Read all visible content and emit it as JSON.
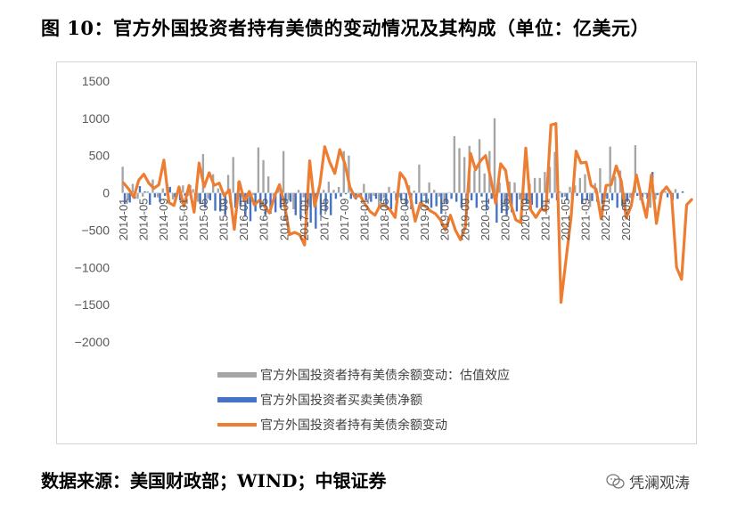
{
  "header": {
    "title": "图 10：官方外国投资者持有美债的变动情况及其构成（单位：亿美元）"
  },
  "footer": {
    "source": "数据来源：美国财政部；WIND；中银证券",
    "watermark": "凭澜观涛"
  },
  "colors": {
    "valuation": "#a5a5a5",
    "net_trade": "#4472c4",
    "total_change": "#ed7d31",
    "axis_text": "#595959"
  },
  "chart_data": {
    "type": "bar",
    "ylim": [
      -2000,
      1500
    ],
    "yticks": [
      1500,
      1000,
      500,
      0,
      -500,
      -1000,
      -1500,
      -2000
    ],
    "xticks": [
      "2014-01",
      "2014-05",
      "2014-09",
      "2015-01",
      "2015-05",
      "2015-09",
      "2016-01",
      "2016-05",
      "2016-09",
      "2017-01",
      "2017-05",
      "2017-09",
      "2018-01",
      "2018-05",
      "2018-09",
      "2019-01",
      "2019-05",
      "2019-09",
      "2020-01",
      "2020-05",
      "2020-09",
      "2021-01",
      "2021-05",
      "2021-09",
      "2022-01",
      "2022-05"
    ],
    "x_start": "2014-01",
    "series": [
      {
        "name": "官方外国投资者持有美债余额变动：估值效应",
        "type": "bar",
        "values": [
          350,
          -100,
          120,
          -80,
          -50,
          20,
          180,
          -60,
          60,
          20,
          -90,
          30,
          100,
          -40,
          50,
          -120,
          520,
          -80,
          250,
          60,
          -20,
          240,
          480,
          150,
          -20,
          -150,
          -30,
          610,
          440,
          220,
          -50,
          80,
          560,
          -100,
          -220,
          40,
          -60,
          -190,
          -20,
          80,
          40,
          150,
          40,
          80,
          560,
          500,
          -20,
          -50,
          120,
          -80,
          -40,
          -220,
          -70,
          80,
          20,
          -60,
          -20,
          100,
          30,
          380,
          -40,
          140,
          40,
          -50,
          -130,
          10,
          760,
          600,
          480,
          630,
          300,
          720,
          260,
          560,
          1000,
          140,
          -160,
          150,
          140,
          -90,
          -100,
          120,
          200,
          200,
          280,
          350,
          550,
          20,
          -50,
          80,
          100,
          200,
          250,
          -190,
          130,
          330,
          80,
          620,
          220,
          300,
          -320,
          -70,
          640,
          -100,
          -20,
          -200,
          -90,
          -100,
          20,
          30,
          50
        ]
      },
      {
        "name": "官方外国投资者买卖美债净额",
        "type": "bar",
        "values": [
          -150,
          -130,
          -80,
          90,
          20,
          -160,
          -60,
          -120,
          -40,
          80,
          -60,
          -100,
          -40,
          100,
          -180,
          -150,
          -200,
          -100,
          -240,
          -250,
          -300,
          -150,
          -200,
          -180,
          -320,
          -380,
          -250,
          -200,
          -300,
          -280,
          -260,
          -200,
          -370,
          -120,
          -300,
          -350,
          -280,
          -400,
          -480,
          -300,
          -250,
          -300,
          -80,
          -50,
          -20,
          -80,
          -90,
          -60,
          -100,
          -120,
          -80,
          -110,
          -200,
          -220,
          -100,
          -100,
          -180,
          -220,
          -150,
          -130,
          -140,
          -200,
          -180,
          -280,
          -150,
          -80,
          -120,
          -200,
          -250,
          -100,
          -200,
          -50,
          -230,
          -80,
          -400,
          -270,
          -300,
          -260,
          -250,
          -200,
          -150,
          -160,
          -200,
          -220,
          -120,
          -70,
          -100,
          -60,
          -100,
          -80,
          -40,
          -150,
          -100,
          -110,
          -120,
          -150,
          -80,
          -100,
          -200,
          -180,
          -120,
          -100,
          -40,
          -60,
          -80,
          280,
          -30,
          40,
          -60,
          -100,
          -80,
          20
        ]
      },
      {
        "name": "官方外国投资者持有美债余额变动",
        "type": "line",
        "values": [
          130,
          50,
          -60,
          170,
          250,
          130,
          60,
          110,
          440,
          -130,
          -170,
          80,
          -180,
          100,
          -260,
          400,
          80,
          270,
          100,
          130,
          -40,
          40,
          -490,
          150,
          -110,
          20,
          -160,
          -100,
          -180,
          -270,
          -50,
          110,
          -150,
          -560,
          -530,
          -560,
          -700,
          430,
          -180,
          100,
          620,
          410,
          260,
          580,
          390,
          80,
          -60,
          -30,
          -150,
          -250,
          -300,
          -170,
          -170,
          -230,
          -330,
          270,
          180,
          -40,
          -380,
          -140,
          -180,
          -240,
          -280,
          -360,
          -500,
          -300,
          -500,
          -630,
          -450,
          530,
          310,
          430,
          500,
          200,
          -140,
          390,
          300,
          -150,
          -360,
          -400,
          600,
          -230,
          -330,
          -220,
          -240,
          910,
          930,
          -1470,
          -900,
          -340,
          560,
          400,
          410,
          100,
          50,
          -350,
          100,
          110,
          360,
          160,
          -340,
          -170,
          240,
          -60,
          -330,
          240,
          -410,
          0,
          80,
          -20,
          -1000,
          -1160,
          -160,
          -90
        ]
      }
    ]
  }
}
